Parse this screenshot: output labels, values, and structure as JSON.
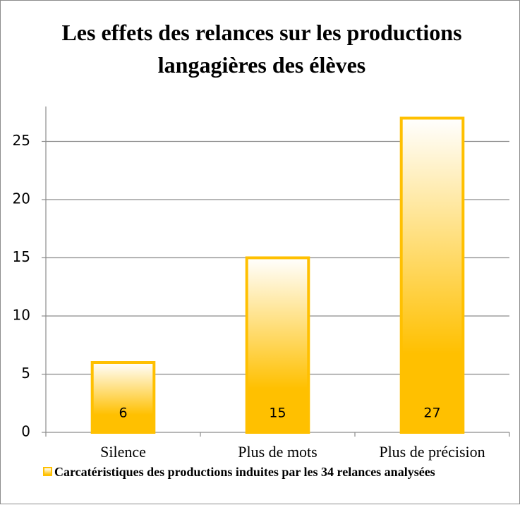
{
  "chart_data": {
    "type": "bar",
    "title": "Les effets des relances sur les productions langagières des élèves",
    "categories": [
      "Silence",
      "Plus de mots",
      "Plus de précision"
    ],
    "series": [
      {
        "name": "Carcatéristiques des productions induites par les 34 relances analysées",
        "color": "#ffc000",
        "values": [
          6,
          15,
          27
        ]
      }
    ],
    "ylim": [
      0,
      28
    ],
    "yticks": [
      0,
      5,
      10,
      15,
      20,
      25
    ],
    "grid": true,
    "legend": "bottom"
  }
}
